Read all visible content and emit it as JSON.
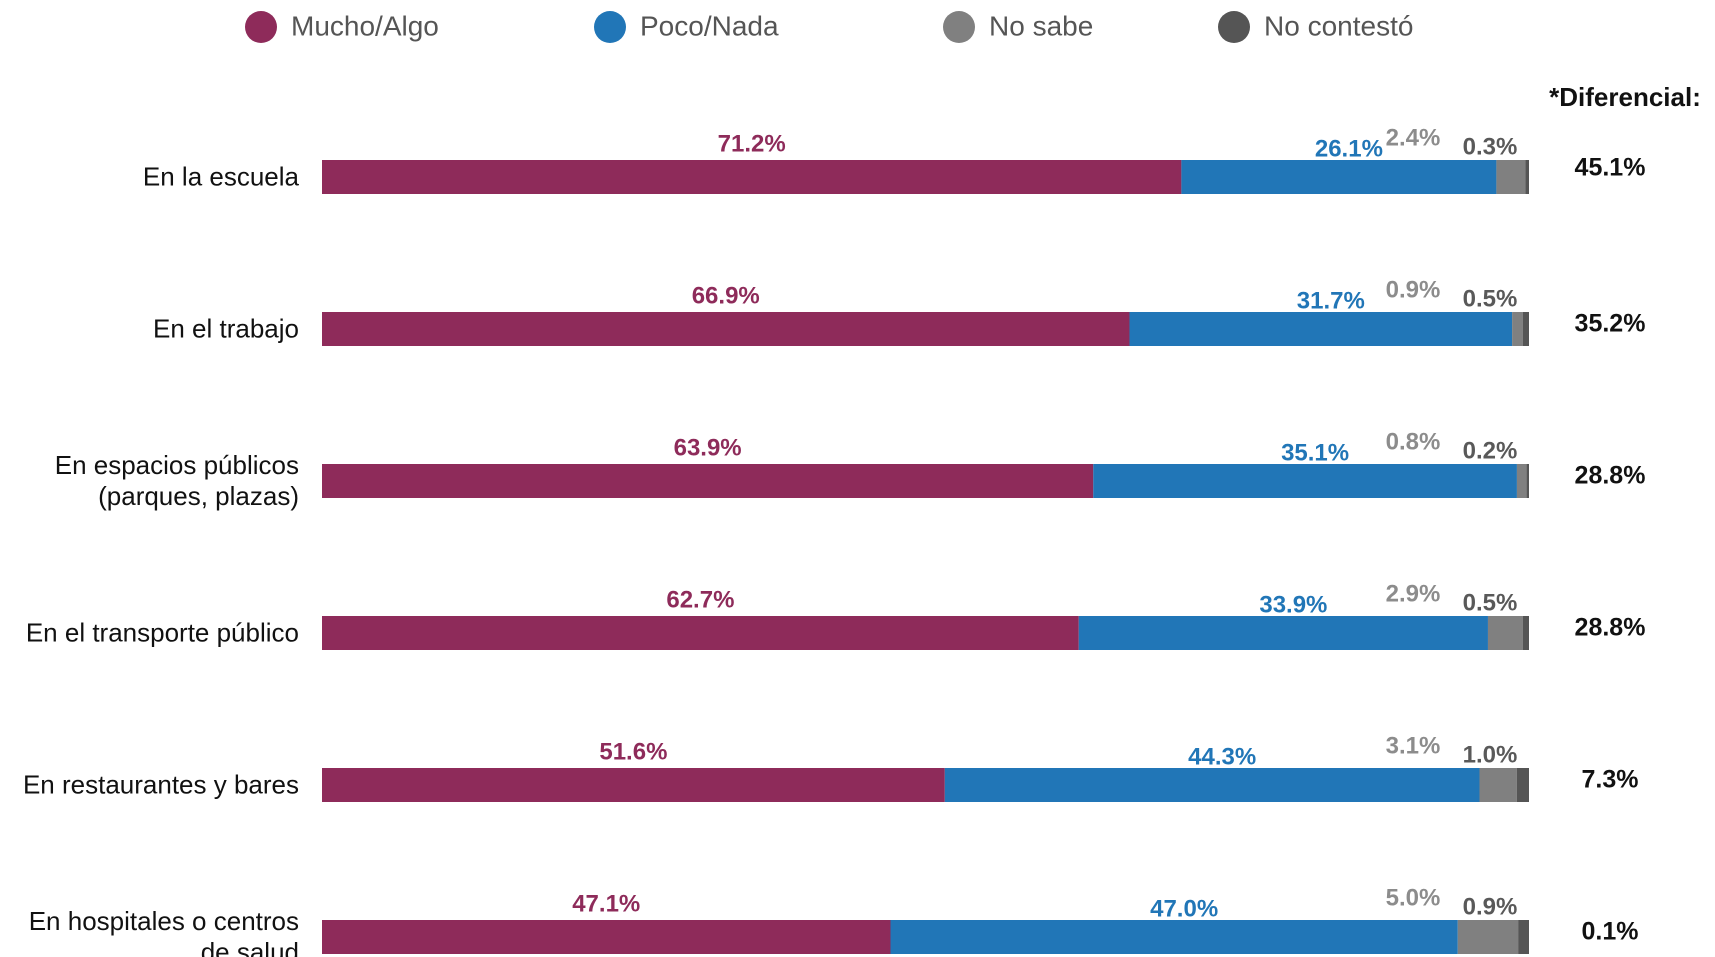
{
  "chart_data": {
    "type": "stacked_barh",
    "categories": [
      "En la escuela",
      "En el trabajo",
      "En espacios públicos\n(parques, plazas)",
      "En el transporte público",
      "En restaurantes y bares",
      "En hospitales o centros\nde salud"
    ],
    "xlim": [
      0,
      100
    ],
    "series": [
      {
        "name": "Mucho/Algo",
        "color": "#8e2b5a",
        "label_color": "#8e2b5a",
        "values": [
          71.2,
          66.9,
          63.9,
          62.7,
          51.6,
          47.1
        ],
        "value_labels": [
          "71.2%",
          "66.9%",
          "63.9%",
          "62.7%",
          "51.6%",
          "47.1%"
        ]
      },
      {
        "name": "Poco/Nada",
        "color": "#2176b7",
        "label_color": "#2176b7",
        "values": [
          26.1,
          31.7,
          35.1,
          33.9,
          44.3,
          47.0
        ],
        "value_labels": [
          "26.1%",
          "31.7%",
          "35.1%",
          "33.9%",
          "44.3%",
          "47.0%"
        ]
      },
      {
        "name": "No sabe",
        "color": "#808080",
        "label_color": "#8c8c8c",
        "values": [
          2.4,
          0.9,
          0.8,
          2.9,
          3.1,
          5.0
        ],
        "value_labels": [
          "2.4%",
          "0.9%",
          "0.8%",
          "2.9%",
          "3.1%",
          "5.0%"
        ]
      },
      {
        "name": "No contestó",
        "color": "#555555",
        "label_color": "#595959",
        "values": [
          0.3,
          0.5,
          0.2,
          0.5,
          1.0,
          0.9
        ],
        "value_labels": [
          "0.3%",
          "0.5%",
          "0.2%",
          "0.5%",
          "1.0%",
          "0.9%"
        ]
      }
    ],
    "diferencial": {
      "title": "*Diferencial:",
      "values": [
        45.1,
        35.2,
        28.8,
        28.8,
        7.3,
        0.1
      ],
      "value_labels": [
        "45.1%",
        "35.2%",
        "28.8%",
        "28.8%",
        "7.3%",
        "0.1%"
      ]
    }
  }
}
